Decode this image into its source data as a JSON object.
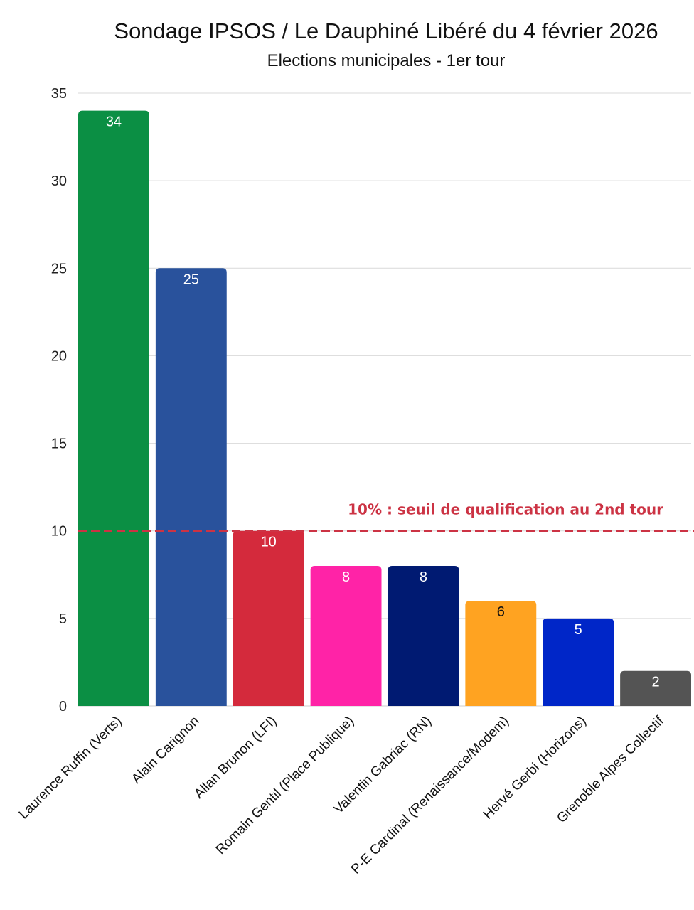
{
  "chart_data": {
    "type": "bar",
    "title": "Sondage IPSOS / Le Dauphiné Libéré du 4 février 2026",
    "subtitle": "Elections municipales - 1er tour",
    "xlabel": "",
    "ylabel": "",
    "ylim": [
      0,
      35
    ],
    "yticks": [
      0,
      5,
      10,
      15,
      20,
      25,
      30,
      35
    ],
    "grid": true,
    "legend": "none",
    "categories": [
      "Laurence Ruffin (Verts)",
      "Alain Carignon",
      "Allan Brunon (LFI)",
      "Romain Gentil (Place Publique)",
      "Valentin Gabriac (RN)",
      "P-E Cardinal (Renaissance/Modem)",
      "Hervé Gerbi (Horizons)",
      "Grenoble Alpes Collectif"
    ],
    "values": [
      34,
      25,
      10,
      8,
      8,
      6,
      5,
      2
    ],
    "bar_colors": [
      "#0b8f44",
      "#29529c",
      "#d42a3c",
      "#ff23a7",
      "#001a72",
      "#ffa321",
      "#0026c8",
      "#545454"
    ],
    "value_label_colors": [
      "#ffffff",
      "#ffffff",
      "#ffffff",
      "#ffffff",
      "#ffffff",
      "#111111",
      "#ffffff",
      "#ffffff"
    ],
    "threshold": {
      "value": 10,
      "label": "10% : seuil de qualification au 2nd tour",
      "color": "#cc3344",
      "style": "dashed"
    }
  }
}
